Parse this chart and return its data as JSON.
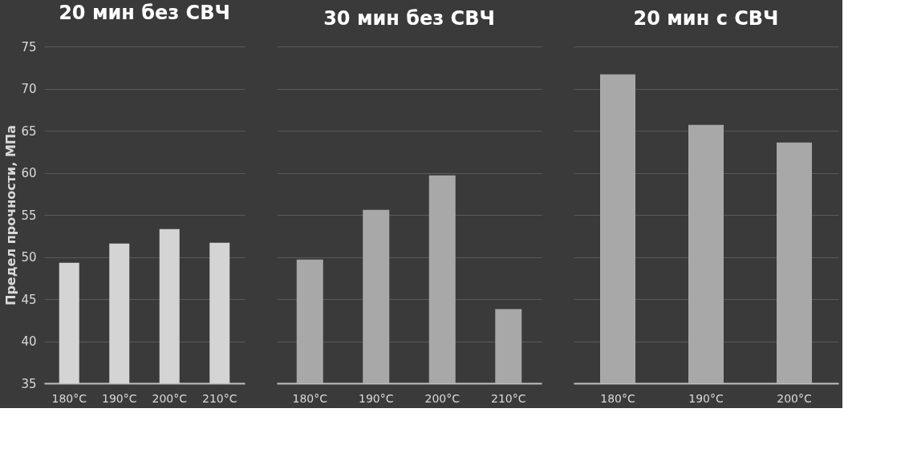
{
  "chart_data": [
    {
      "type": "bar",
      "title": "20 мин без СВЧ",
      "ylabel": "Предел прочности, МПа",
      "categories": [
        "180°C",
        "190°C",
        "200°C",
        "210°C"
      ],
      "values": [
        49.3,
        51.6,
        53.3,
        51.7
      ],
      "color": "#d4d4d4",
      "ylim": [
        35,
        75
      ],
      "yticks": [
        35,
        40,
        45,
        50,
        55,
        60,
        65,
        70,
        75
      ],
      "grid": "y"
    },
    {
      "type": "bar",
      "title": "30 мин без СВЧ",
      "categories": [
        "180°C",
        "190°C",
        "200°C",
        "210°C"
      ],
      "values": [
        49.7,
        55.6,
        59.7,
        43.8
      ],
      "color": "#a8a8a8",
      "ylim": [
        35,
        75
      ],
      "yticks": [
        35,
        40,
        45,
        50,
        55,
        60,
        65,
        70,
        75
      ],
      "grid": "y",
      "tick_labels": "x"
    },
    {
      "type": "bar",
      "title": "20 мин с СВЧ",
      "categories": [
        "180°C",
        "190°C",
        "200°C"
      ],
      "values": [
        71.7,
        65.7,
        63.6
      ],
      "color": "#a8a8a8",
      "ylim": [
        35,
        75
      ],
      "yticks": [
        35,
        40,
        45,
        50,
        55,
        60,
        65,
        70,
        75
      ],
      "grid": "y",
      "tick_labels": "x"
    }
  ]
}
